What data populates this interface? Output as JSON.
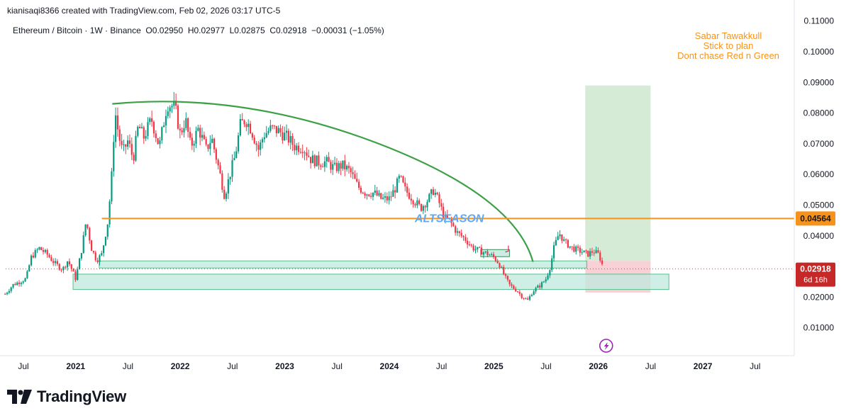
{
  "header": {
    "credit": "kianisaqi8366 created with TradingView.com, Feb 02, 2026 03:17 UTC-5"
  },
  "legend": {
    "symbol": "Ethereum / Bitcoin · 1W · Binance",
    "open_label": "O",
    "open": "0.02950",
    "high_label": "H",
    "high": "0.02977",
    "low_label": "L",
    "low": "0.02875",
    "close_label": "C",
    "close": "0.02918",
    "change": "−0.00031 (−1.05%)"
  },
  "chart_data": {
    "type": "candlestick",
    "title": "Ethereum / Bitcoin · 1W · Binance",
    "y_axis": {
      "ticks": [
        "0.01000",
        "0.02000",
        "0.03000",
        "0.04000",
        "0.05000",
        "0.06000",
        "0.07000",
        "0.08000",
        "0.09000",
        "0.10000",
        "0.11000"
      ],
      "ylim": [
        0.0,
        0.113
      ]
    },
    "x_axis": {
      "ticks": [
        {
          "label": "Jul",
          "t": 0.0
        },
        {
          "label": "2021",
          "t": 1.0
        },
        {
          "label": "Jul",
          "t": 2.0
        },
        {
          "label": "2022",
          "t": 3.0
        },
        {
          "label": "Jul",
          "t": 4.0
        },
        {
          "label": "2023",
          "t": 5.0
        },
        {
          "label": "Jul",
          "t": 6.0
        },
        {
          "label": "2024",
          "t": 7.0
        },
        {
          "label": "Jul",
          "t": 8.0
        },
        {
          "label": "2025",
          "t": 9.0
        },
        {
          "label": "Jul",
          "t": 10.0
        },
        {
          "label": "2026",
          "t": 11.0
        },
        {
          "label": "Jul",
          "t": 12.0
        },
        {
          "label": "2027",
          "t": 13.0
        },
        {
          "label": "Jul",
          "t": 14.0
        }
      ]
    },
    "price_path": [
      [
        -0.35,
        0.021
      ],
      [
        -0.2,
        0.024
      ],
      [
        0.05,
        0.026
      ],
      [
        0.15,
        0.033
      ],
      [
        0.3,
        0.036
      ],
      [
        0.45,
        0.034
      ],
      [
        0.6,
        0.031
      ],
      [
        0.75,
        0.029
      ],
      [
        0.85,
        0.032
      ],
      [
        1.0,
        0.026
      ],
      [
        1.05,
        0.03
      ],
      [
        1.12,
        0.036
      ],
      [
        1.2,
        0.045
      ],
      [
        1.3,
        0.036
      ],
      [
        1.4,
        0.032
      ],
      [
        1.5,
        0.034
      ],
      [
        1.62,
        0.045
      ],
      [
        1.7,
        0.062
      ],
      [
        1.75,
        0.081
      ],
      [
        1.82,
        0.073
      ],
      [
        1.9,
        0.067
      ],
      [
        2.0,
        0.071
      ],
      [
        2.1,
        0.065
      ],
      [
        2.2,
        0.076
      ],
      [
        2.3,
        0.072
      ],
      [
        2.45,
        0.078
      ],
      [
        2.6,
        0.069
      ],
      [
        2.75,
        0.083
      ],
      [
        2.9,
        0.082
      ],
      [
        3.0,
        0.073
      ],
      [
        3.1,
        0.078
      ],
      [
        3.2,
        0.069
      ],
      [
        3.35,
        0.075
      ],
      [
        3.5,
        0.068
      ],
      [
        3.6,
        0.072
      ],
      [
        3.75,
        0.061
      ],
      [
        3.85,
        0.053
      ],
      [
        3.95,
        0.06
      ],
      [
        4.05,
        0.066
      ],
      [
        4.15,
        0.076
      ],
      [
        4.25,
        0.078
      ],
      [
        4.35,
        0.075
      ],
      [
        4.5,
        0.068
      ],
      [
        4.6,
        0.073
      ],
      [
        4.75,
        0.075
      ],
      [
        4.9,
        0.074
      ],
      [
        5.05,
        0.072
      ],
      [
        5.2,
        0.069
      ],
      [
        5.35,
        0.069
      ],
      [
        5.5,
        0.065
      ],
      [
        5.65,
        0.064
      ],
      [
        5.8,
        0.064
      ],
      [
        5.95,
        0.062
      ],
      [
        6.1,
        0.063
      ],
      [
        6.25,
        0.061
      ],
      [
        6.4,
        0.056
      ],
      [
        6.55,
        0.054
      ],
      [
        6.7,
        0.054
      ],
      [
        6.85,
        0.052
      ],
      [
        7.0,
        0.052
      ],
      [
        7.1,
        0.055
      ],
      [
        7.2,
        0.059
      ],
      [
        7.3,
        0.055
      ],
      [
        7.45,
        0.052
      ],
      [
        7.6,
        0.049
      ],
      [
        7.75,
        0.052
      ],
      [
        7.85,
        0.055
      ],
      [
        7.95,
        0.051
      ],
      [
        8.05,
        0.046
      ],
      [
        8.15,
        0.045
      ],
      [
        8.3,
        0.041
      ],
      [
        8.45,
        0.039
      ],
      [
        8.6,
        0.036
      ],
      [
        8.75,
        0.035
      ],
      [
        8.9,
        0.034
      ],
      [
        9.0,
        0.033
      ],
      [
        9.1,
        0.031
      ],
      [
        9.2,
        0.027
      ],
      [
        9.3,
        0.024
      ],
      [
        9.45,
        0.022
      ],
      [
        9.55,
        0.02
      ],
      [
        9.65,
        0.019
      ],
      [
        9.75,
        0.022
      ],
      [
        9.9,
        0.024
      ],
      [
        10.0,
        0.026
      ],
      [
        10.08,
        0.03
      ],
      [
        10.15,
        0.036
      ],
      [
        10.25,
        0.041
      ],
      [
        10.35,
        0.038
      ],
      [
        10.5,
        0.036
      ],
      [
        10.65,
        0.035
      ],
      [
        10.8,
        0.034
      ],
      [
        10.9,
        0.035
      ],
      [
        11.0,
        0.034
      ],
      [
        11.05,
        0.032
      ],
      [
        11.1,
        0.0292
      ]
    ],
    "last_price": 0.02918,
    "annotations": {
      "arc_label": "",
      "altseason_label": "ALTSEASON",
      "altseason_level": 0.04564,
      "notes": [
        "Sabar Tawakkull",
        "Stick to plan",
        "Dont chase Red n Green"
      ],
      "support_zone_1": [
        0.0295,
        0.0318
      ],
      "support_zone_2": [
        0.0225,
        0.0275
      ],
      "target_zone": [
        0.0318,
        0.089
      ],
      "stop_zone": [
        0.0215,
        0.0318
      ]
    },
    "price_labels": {
      "altseason_value": "0.04564",
      "last_value": "0.02918",
      "countdown": "6d 16h"
    }
  },
  "footer": {
    "brand": "TradingView"
  },
  "colors": {
    "up": "#089981",
    "down": "#f23645",
    "arc": "#3ba046",
    "orange": "#f7931a",
    "altseason": "#5fa8f5",
    "zone_fill": "#bfe9dd",
    "zone_border": "#5bbf8d",
    "target_fill": "#cfe8cf",
    "stop_fill": "#f6c9cf",
    "last_label": "#c62828"
  }
}
